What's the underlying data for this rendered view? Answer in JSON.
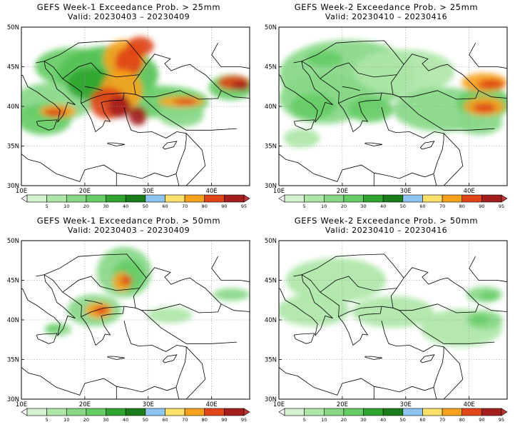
{
  "panels": [
    {
      "title": "GEFS Week-1 Exceedance Prob. > 25mm",
      "valid": "Valid: 20230403 – 20230409",
      "blobs": [
        [
          0.22,
          0.25,
          0.16,
          0.12,
          "#66cc66"
        ],
        [
          0.38,
          0.3,
          0.22,
          0.18,
          "#55c255"
        ],
        [
          0.14,
          0.47,
          0.18,
          0.12,
          "#88d888"
        ],
        [
          0.6,
          0.47,
          0.22,
          0.1,
          "#66cc66"
        ],
        [
          0.7,
          0.55,
          0.1,
          0.08,
          "#88d888"
        ],
        [
          0.1,
          0.58,
          0.12,
          0.1,
          "#66cc66"
        ],
        [
          0.92,
          0.38,
          0.1,
          0.08,
          "#66cc66"
        ],
        [
          0.3,
          0.36,
          0.1,
          0.1,
          "#2fa52f"
        ],
        [
          0.45,
          0.2,
          0.09,
          0.12,
          "#f6a21e"
        ],
        [
          0.52,
          0.12,
          0.06,
          0.06,
          "#e04418"
        ],
        [
          0.47,
          0.22,
          0.06,
          0.09,
          "#e04418"
        ],
        [
          0.44,
          0.4,
          0.09,
          0.13,
          "#f6a21e"
        ],
        [
          0.38,
          0.48,
          0.08,
          0.1,
          "#e04418"
        ],
        [
          0.43,
          0.5,
          0.05,
          0.07,
          "#a51e1e"
        ],
        [
          0.16,
          0.53,
          0.08,
          0.04,
          "#f6a21e"
        ],
        [
          0.15,
          0.54,
          0.05,
          0.025,
          "#e04418"
        ],
        [
          0.7,
          0.47,
          0.1,
          0.035,
          "#f6a21e"
        ],
        [
          0.72,
          0.47,
          0.05,
          0.02,
          "#e04418"
        ],
        [
          0.93,
          0.35,
          0.07,
          0.045,
          "#e04418"
        ],
        [
          0.96,
          0.37,
          0.04,
          0.03,
          "#a51e1e"
        ],
        [
          0.51,
          0.56,
          0.04,
          0.06,
          "#a51e1e"
        ]
      ]
    },
    {
      "title": "GEFS Week-2 Exceedance Prob. > 25mm",
      "valid": "Valid: 20230410 – 20230416",
      "blobs": [
        [
          0.3,
          0.3,
          0.3,
          0.22,
          "#88d888"
        ],
        [
          0.55,
          0.28,
          0.22,
          0.14,
          "#aee6a8"
        ],
        [
          0.2,
          0.45,
          0.2,
          0.16,
          "#88d888"
        ],
        [
          0.72,
          0.52,
          0.22,
          0.14,
          "#88d888"
        ],
        [
          0.15,
          0.5,
          0.1,
          0.08,
          "#66cc66"
        ],
        [
          0.4,
          0.52,
          0.1,
          0.08,
          "#66cc66"
        ],
        [
          0.9,
          0.48,
          0.12,
          0.1,
          "#66cc66"
        ],
        [
          0.88,
          0.6,
          0.1,
          0.08,
          "#88d888"
        ],
        [
          0.1,
          0.7,
          0.08,
          0.06,
          "#aee6a8"
        ],
        [
          0.9,
          0.35,
          0.1,
          0.06,
          "#f6a21e"
        ],
        [
          0.93,
          0.36,
          0.06,
          0.03,
          "#e04418"
        ],
        [
          0.9,
          0.5,
          0.09,
          0.06,
          "#f6a21e"
        ],
        [
          0.9,
          0.51,
          0.05,
          0.03,
          "#e04418"
        ],
        [
          0.2,
          0.2,
          0.08,
          0.05,
          "#66cc66"
        ]
      ]
    },
    {
      "title": "GEFS Week-1 Exceedance Prob. > 50mm",
      "valid": "Valid: 20230403 – 20230409",
      "blobs": [
        [
          0.45,
          0.2,
          0.12,
          0.16,
          "#88d888"
        ],
        [
          0.47,
          0.22,
          0.07,
          0.1,
          "#66cc66"
        ],
        [
          0.44,
          0.26,
          0.04,
          0.06,
          "#f6a21e"
        ],
        [
          0.46,
          0.25,
          0.025,
          0.03,
          "#e04418"
        ],
        [
          0.32,
          0.44,
          0.12,
          0.1,
          "#88d888"
        ],
        [
          0.34,
          0.44,
          0.06,
          0.05,
          "#f6a21e"
        ],
        [
          0.35,
          0.44,
          0.03,
          0.025,
          "#e04418"
        ],
        [
          0.16,
          0.56,
          0.06,
          0.04,
          "#88d888"
        ],
        [
          0.14,
          0.55,
          0.03,
          0.02,
          "#66cc66"
        ],
        [
          0.92,
          0.34,
          0.08,
          0.04,
          "#88d888"
        ],
        [
          0.65,
          0.47,
          0.1,
          0.05,
          "#aee6a8"
        ]
      ]
    },
    {
      "title": "GEFS Week-2 Exceedance Prob. > 50mm",
      "valid": "Valid: 20230410 – 20230416",
      "blobs": [
        [
          0.25,
          0.25,
          0.22,
          0.14,
          "#aee6a8"
        ],
        [
          0.15,
          0.44,
          0.16,
          0.1,
          "#aee6a8"
        ],
        [
          0.5,
          0.45,
          0.18,
          0.1,
          "#aee6a8"
        ],
        [
          0.8,
          0.55,
          0.18,
          0.12,
          "#aee6a8"
        ],
        [
          0.9,
          0.34,
          0.08,
          0.05,
          "#88d888"
        ],
        [
          0.9,
          0.5,
          0.08,
          0.06,
          "#88d888"
        ],
        [
          0.92,
          0.35,
          0.04,
          0.025,
          "#66cc66"
        ],
        [
          0.88,
          0.5,
          0.04,
          0.03,
          "#66cc66"
        ]
      ]
    }
  ],
  "x_ticks": [
    "10E",
    "20E",
    "30E",
    "40E"
  ],
  "y_ticks": [
    "50N",
    "45N",
    "40N",
    "35N",
    "30N"
  ],
  "colorbar": {
    "labels": [
      "5",
      "10",
      "20",
      "30",
      "40",
      "50",
      "60",
      "70",
      "80",
      "90",
      "95"
    ],
    "colors": [
      "#ffffff",
      "#d4f2cf",
      "#aee6a8",
      "#88d888",
      "#66cc66",
      "#2fa52f",
      "#1b7c1b",
      "#8ec4f0",
      "#fde06a",
      "#f6a21e",
      "#e04418",
      "#a51e1e",
      "#c03535"
    ]
  },
  "map": {
    "lon_range": [
      10,
      46
    ],
    "lat_range": [
      30,
      50
    ],
    "background": "#ffffff",
    "land_line": "#000000"
  }
}
